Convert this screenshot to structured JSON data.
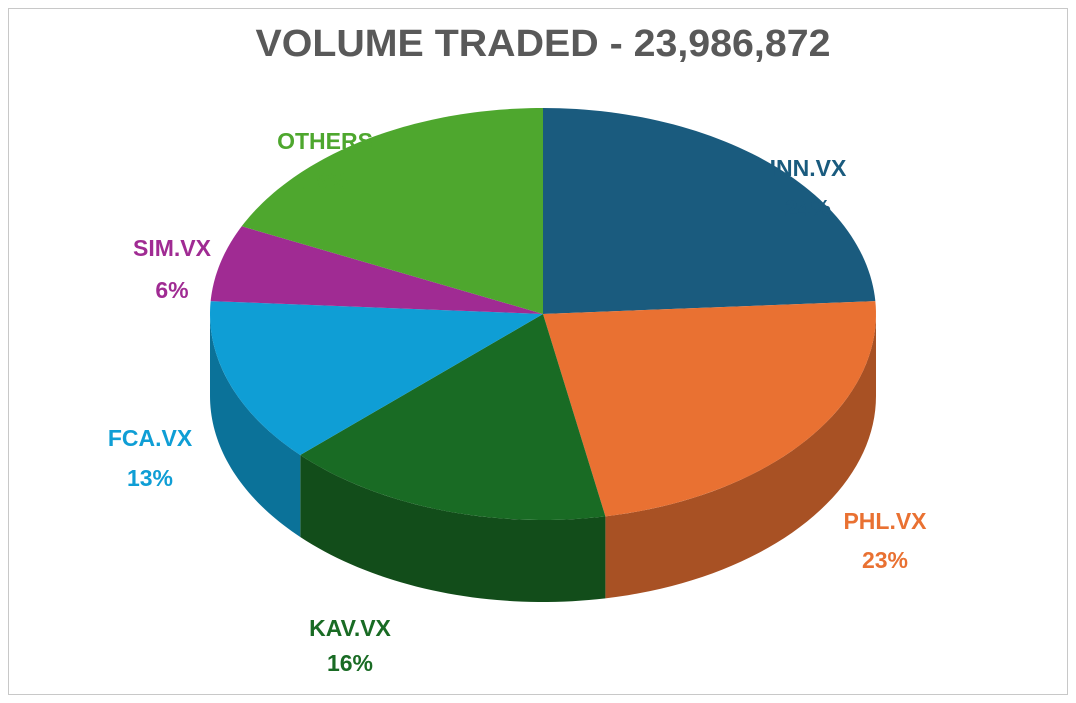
{
  "chart_data": {
    "type": "pie",
    "title": "VOLUME TRADED - 23,986,872",
    "categories": [
      "INN.VX",
      "PHL.VX",
      "KAV.VX",
      "FCA.VX",
      "SIM.VX",
      "OTHERS"
    ],
    "values": [
      24,
      23,
      16,
      13,
      6,
      18
    ],
    "value_labels": [
      "24%",
      "23%",
      "16%",
      "13%",
      "6%",
      "18%"
    ],
    "colors": [
      "#1a5b7e",
      "#e97132",
      "#196b24",
      "#0f9ed5",
      "#a02b93",
      "#4ea72e"
    ]
  }
}
